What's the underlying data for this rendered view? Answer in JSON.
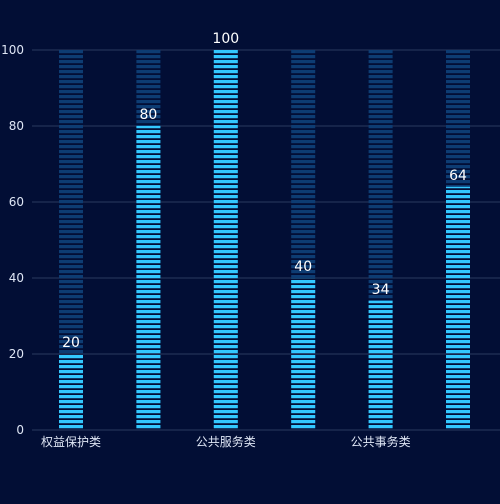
{
  "colors": {
    "background": "#020e35",
    "grid": "#2a3a5e",
    "axis_text": "#dfe6f5",
    "bar_fill": "#33c8ff",
    "bar_track": "#0d3c73",
    "value_label": "#ffffff"
  },
  "chart_data": {
    "type": "bar",
    "style": "segmented bars with full-height background track",
    "categories": [
      "权益保护类",
      "",
      "公共服务类",
      "",
      "公共事务类",
      ""
    ],
    "values": [
      20,
      80,
      100,
      40,
      34,
      64
    ],
    "ylim": [
      0,
      100
    ],
    "yticks": [
      0,
      20,
      40,
      60,
      80,
      100
    ],
    "grid": true,
    "data_labels": true,
    "title": "",
    "xlabel": "",
    "ylabel": ""
  }
}
